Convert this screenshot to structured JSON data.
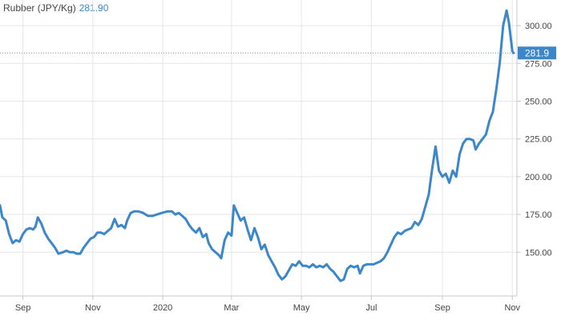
{
  "legend": {
    "name": "Rubber (JPY/Kg)",
    "value": "281.90"
  },
  "last_label": "281.9",
  "colors": {
    "line": "#3b87c9",
    "grid": "#e6e6e6",
    "axis": "#c8c8c8",
    "text": "#444444"
  },
  "chart_data": {
    "type": "line",
    "title": "",
    "xlabel": "",
    "ylabel": "",
    "ylim": [
      121,
      317
    ],
    "y_ticks": [
      150,
      175,
      200,
      225,
      250,
      275,
      300
    ],
    "y_tick_labels": [
      "150.00",
      "175.00",
      "200.00",
      "225.00",
      "250.00",
      "275.00",
      "300.00"
    ],
    "x_tick_labels": [
      {
        "label": "Sep",
        "date": "2019-09-01"
      },
      {
        "label": "Nov",
        "date": "2019-11-01"
      },
      {
        "label": "2020",
        "date": "2020-01-01"
      },
      {
        "label": "Mar",
        "date": "2020-03-01"
      },
      {
        "label": "May",
        "date": "2020-05-01"
      },
      {
        "label": "Jul",
        "date": "2020-07-01"
      },
      {
        "label": "Sep",
        "date": "2020-09-01"
      },
      {
        "label": "Nov",
        "date": "2020-11-01"
      }
    ],
    "x_range": [
      "2019-08-12",
      "2020-11-05"
    ],
    "last_value": 281.9,
    "grid": true,
    "series": [
      {
        "name": "Rubber (JPY/Kg)",
        "points": [
          [
            "2019-08-12",
            181
          ],
          [
            "2019-08-14",
            173
          ],
          [
            "2019-08-17",
            171
          ],
          [
            "2019-08-20",
            162
          ],
          [
            "2019-08-23",
            156
          ],
          [
            "2019-08-26",
            158
          ],
          [
            "2019-08-29",
            157
          ],
          [
            "2019-09-01",
            162
          ],
          [
            "2019-09-04",
            165
          ],
          [
            "2019-09-07",
            166
          ],
          [
            "2019-09-10",
            165
          ],
          [
            "2019-09-12",
            167
          ],
          [
            "2019-09-14",
            173
          ],
          [
            "2019-09-17",
            169
          ],
          [
            "2019-09-20",
            163
          ],
          [
            "2019-09-23",
            159
          ],
          [
            "2019-09-26",
            156
          ],
          [
            "2019-09-29",
            153
          ],
          [
            "2019-10-02",
            149
          ],
          [
            "2019-10-06",
            150
          ],
          [
            "2019-10-09",
            151
          ],
          [
            "2019-10-12",
            150
          ],
          [
            "2019-10-15",
            150
          ],
          [
            "2019-10-18",
            149
          ],
          [
            "2019-10-21",
            149
          ],
          [
            "2019-10-24",
            153
          ],
          [
            "2019-10-27",
            156
          ],
          [
            "2019-10-30",
            159
          ],
          [
            "2019-11-02",
            160
          ],
          [
            "2019-11-05",
            163
          ],
          [
            "2019-11-08",
            163
          ],
          [
            "2019-11-11",
            162
          ],
          [
            "2019-11-14",
            164
          ],
          [
            "2019-11-17",
            166
          ],
          [
            "2019-11-20",
            172
          ],
          [
            "2019-11-23",
            167
          ],
          [
            "2019-11-26",
            168
          ],
          [
            "2019-11-29",
            166
          ],
          [
            "2019-12-01",
            171
          ],
          [
            "2019-12-04",
            176
          ],
          [
            "2019-12-07",
            177
          ],
          [
            "2019-12-11",
            177
          ],
          [
            "2019-12-15",
            176
          ],
          [
            "2019-12-19",
            174
          ],
          [
            "2019-12-23",
            174
          ],
          [
            "2019-12-27",
            175
          ],
          [
            "2019-12-31",
            176
          ],
          [
            "2020-01-05",
            177
          ],
          [
            "2020-01-09",
            177
          ],
          [
            "2020-01-12",
            175
          ],
          [
            "2020-01-15",
            176
          ],
          [
            "2020-01-18",
            174
          ],
          [
            "2020-01-21",
            172
          ],
          [
            "2020-01-24",
            168
          ],
          [
            "2020-01-27",
            165
          ],
          [
            "2020-01-30",
            163
          ],
          [
            "2020-02-02",
            166
          ],
          [
            "2020-02-05",
            160
          ],
          [
            "2020-02-08",
            162
          ],
          [
            "2020-02-10",
            156
          ],
          [
            "2020-02-13",
            152
          ],
          [
            "2020-02-16",
            150
          ],
          [
            "2020-02-19",
            148
          ],
          [
            "2020-02-21",
            146
          ],
          [
            "2020-02-24",
            158
          ],
          [
            "2020-02-27",
            163
          ],
          [
            "2020-03-01",
            161
          ],
          [
            "2020-03-03",
            181
          ],
          [
            "2020-03-06",
            176
          ],
          [
            "2020-03-09",
            171
          ],
          [
            "2020-03-12",
            173
          ],
          [
            "2020-03-15",
            165
          ],
          [
            "2020-03-18",
            158
          ],
          [
            "2020-03-21",
            166
          ],
          [
            "2020-03-24",
            160
          ],
          [
            "2020-03-27",
            152
          ],
          [
            "2020-03-30",
            155
          ],
          [
            "2020-04-02",
            148
          ],
          [
            "2020-04-05",
            144
          ],
          [
            "2020-04-08",
            140
          ],
          [
            "2020-04-11",
            135
          ],
          [
            "2020-04-14",
            132
          ],
          [
            "2020-04-17",
            134
          ],
          [
            "2020-04-20",
            138
          ],
          [
            "2020-04-23",
            142
          ],
          [
            "2020-04-26",
            141
          ],
          [
            "2020-04-29",
            144
          ],
          [
            "2020-05-02",
            141
          ],
          [
            "2020-05-05",
            141
          ],
          [
            "2020-05-08",
            140
          ],
          [
            "2020-05-11",
            142
          ],
          [
            "2020-05-14",
            140
          ],
          [
            "2020-05-17",
            141
          ],
          [
            "2020-05-20",
            140
          ],
          [
            "2020-05-23",
            142
          ],
          [
            "2020-05-26",
            139
          ],
          [
            "2020-05-29",
            137
          ],
          [
            "2020-06-01",
            134
          ],
          [
            "2020-06-04",
            131
          ],
          [
            "2020-06-07",
            132
          ],
          [
            "2020-06-10",
            139
          ],
          [
            "2020-06-13",
            141
          ],
          [
            "2020-06-16",
            140
          ],
          [
            "2020-06-19",
            141
          ],
          [
            "2020-06-21",
            136
          ],
          [
            "2020-06-24",
            141
          ],
          [
            "2020-06-27",
            142
          ],
          [
            "2020-06-30",
            142
          ],
          [
            "2020-07-03",
            142
          ],
          [
            "2020-07-06",
            143
          ],
          [
            "2020-07-09",
            144
          ],
          [
            "2020-07-12",
            146
          ],
          [
            "2020-07-15",
            150
          ],
          [
            "2020-07-18",
            155
          ],
          [
            "2020-07-21",
            160
          ],
          [
            "2020-07-24",
            163
          ],
          [
            "2020-07-27",
            162
          ],
          [
            "2020-07-30",
            164
          ],
          [
            "2020-08-02",
            165
          ],
          [
            "2020-08-05",
            166
          ],
          [
            "2020-08-08",
            170
          ],
          [
            "2020-08-11",
            168
          ],
          [
            "2020-08-14",
            172
          ],
          [
            "2020-08-17",
            180
          ],
          [
            "2020-08-20",
            188
          ],
          [
            "2020-08-23",
            205
          ],
          [
            "2020-08-26",
            220
          ],
          [
            "2020-08-29",
            204
          ],
          [
            "2020-09-01",
            200
          ],
          [
            "2020-09-04",
            202
          ],
          [
            "2020-09-07",
            196
          ],
          [
            "2020-09-10",
            204
          ],
          [
            "2020-09-13",
            200
          ],
          [
            "2020-09-16",
            215
          ],
          [
            "2020-09-19",
            222
          ],
          [
            "2020-09-22",
            225
          ],
          [
            "2020-09-25",
            225
          ],
          [
            "2020-09-28",
            224
          ],
          [
            "2020-09-30",
            218
          ],
          [
            "2020-10-03",
            222
          ],
          [
            "2020-10-06",
            225
          ],
          [
            "2020-10-09",
            228
          ],
          [
            "2020-10-12",
            237
          ],
          [
            "2020-10-15",
            243
          ],
          [
            "2020-10-18",
            258
          ],
          [
            "2020-10-21",
            275
          ],
          [
            "2020-10-24",
            300
          ],
          [
            "2020-10-27",
            310
          ],
          [
            "2020-10-29",
            302
          ],
          [
            "2020-11-01",
            283
          ],
          [
            "2020-11-02",
            281.9
          ]
        ]
      }
    ]
  }
}
